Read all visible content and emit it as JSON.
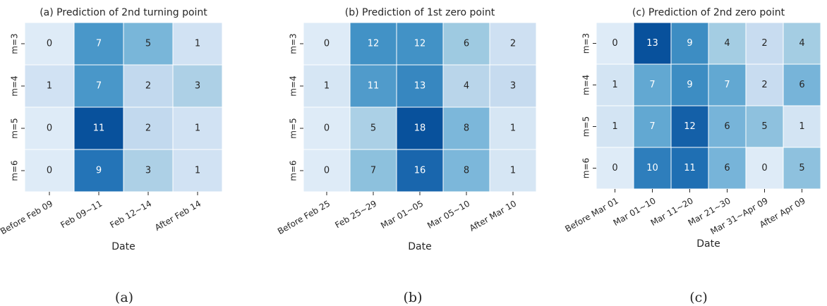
{
  "chart_data": [
    {
      "type": "heatmap",
      "title": "(a) Prediction of 2nd turning point",
      "xlabel": "Date",
      "caption": "(a)",
      "categories": [
        "Before Feb 09",
        "Feb 09~11",
        "Feb 12~14",
        "After Feb 14"
      ],
      "y_categories": [
        "m=3",
        "m=4",
        "m=5",
        "m=6"
      ],
      "values": [
        [
          0,
          7,
          5,
          1
        ],
        [
          1,
          7,
          2,
          3
        ],
        [
          0,
          11,
          2,
          1
        ],
        [
          0,
          9,
          3,
          1
        ]
      ],
      "colors": [
        "#deebf7",
        "#c6dbef",
        "#9ecae1",
        "#6baed6",
        "#4292c6",
        "#2171b5",
        "#08519c"
      ]
    },
    {
      "type": "heatmap",
      "title": "(b) Prediction of 1st zero point",
      "xlabel": "Date",
      "caption": "(b)",
      "categories": [
        "Before Feb 25",
        "Feb 25~29",
        "Mar 01~05",
        "Mar 05~10",
        "After Mar 10"
      ],
      "y_categories": [
        "m=3",
        "m=4",
        "m=5",
        "m=6"
      ],
      "values": [
        [
          0,
          12,
          12,
          6,
          2
        ],
        [
          1,
          11,
          13,
          4,
          3
        ],
        [
          0,
          5,
          18,
          8,
          1
        ],
        [
          0,
          7,
          16,
          8,
          1
        ]
      ],
      "colors": [
        "#deebf7",
        "#c6dbef",
        "#9ecae1",
        "#6baed6",
        "#4292c6",
        "#2171b5",
        "#08519c"
      ]
    },
    {
      "type": "heatmap",
      "title": "(c) Prediction of 2nd zero point",
      "xlabel": "Date",
      "caption": "(c)",
      "categories": [
        "Before Mar 01",
        "Mar 01~10",
        "Mar 11~20",
        "Mar 21~30",
        "Mar 31~Apr 09",
        "After Apr 09"
      ],
      "y_categories": [
        "m=3",
        "m=4",
        "m=5",
        "m=6"
      ],
      "values": [
        [
          0,
          13,
          9,
          4,
          2,
          4
        ],
        [
          1,
          7,
          9,
          7,
          2,
          6
        ],
        [
          1,
          7,
          12,
          6,
          5,
          1
        ],
        [
          0,
          10,
          11,
          6,
          0,
          5
        ]
      ],
      "colors": [
        "#deebf7",
        "#c6dbef",
        "#9ecae1",
        "#6baed6",
        "#4292c6",
        "#2171b5",
        "#08519c"
      ]
    }
  ]
}
